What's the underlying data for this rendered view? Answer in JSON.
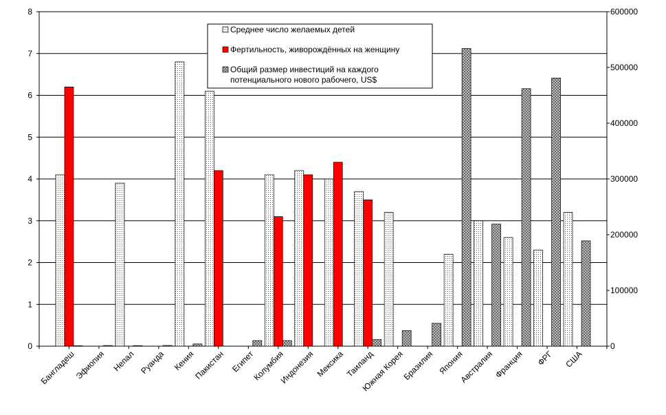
{
  "chart_data": {
    "type": "bar",
    "title": "",
    "xlabel": "",
    "ylabel": "",
    "ylim": [
      0,
      8
    ],
    "y2lim": [
      0,
      600000
    ],
    "y_ticks": [
      "0",
      "1",
      "2",
      "3",
      "4",
      "5",
      "6",
      "7",
      "8"
    ],
    "y2_ticks": [
      "0",
      "100000",
      "200000",
      "300000",
      "400000",
      "500000",
      "600000"
    ],
    "grid": true,
    "legend_position": "top-center",
    "categories": [
      "Бангладеш",
      "Эфиопия",
      "Непал",
      "Руанда",
      "Кения",
      "Пакистан",
      "Египет",
      "Колумбия",
      "Индонезия",
      "Мексика",
      "Таиланд",
      "Южная Корея",
      "Бразилия",
      "Япония",
      "Австралия",
      "Франция",
      "ФРГ",
      "США"
    ],
    "series": [
      {
        "name": "Среднее число желаемых детей",
        "axis": "left",
        "pattern": "dots",
        "color": "#ffffff",
        "values": [
          4.1,
          null,
          3.9,
          null,
          6.8,
          6.1,
          null,
          4.1,
          4.2,
          4.0,
          3.7,
          3.2,
          null,
          2.2,
          3.0,
          2.6,
          2.3,
          3.2
        ]
      },
      {
        "name": "Фертильность, живорождённых на женщину",
        "axis": "left",
        "pattern": "solid",
        "color": "#ff0000",
        "values": [
          6.2,
          null,
          null,
          null,
          null,
          4.2,
          null,
          3.1,
          4.1,
          4.4,
          3.5,
          null,
          null,
          null,
          null,
          null,
          null,
          null
        ]
      },
      {
        "name": "Общий размер инвестиций на каждого потенциального нового рабочего, US$",
        "axis": "right",
        "pattern": "crosshatch",
        "color": "#c0c0c0",
        "values": [
          800,
          1200,
          1000,
          1300,
          4000,
          null,
          10000,
          10000,
          null,
          null,
          12000,
          28000,
          41000,
          534000,
          219000,
          462000,
          481000,
          189000
        ]
      }
    ]
  }
}
